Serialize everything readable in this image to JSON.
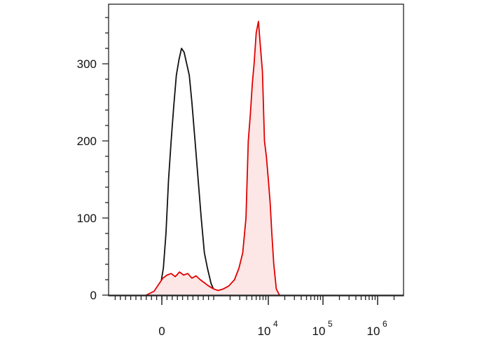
{
  "chart_data": {
    "type": "area",
    "x_scale": "biexponential",
    "y_ticks": [
      {
        "value": 0,
        "label": "0"
      },
      {
        "value": 100,
        "label": "100"
      },
      {
        "value": 200,
        "label": "200"
      },
      {
        "value": 300,
        "label": "300"
      }
    ],
    "x_ticks": [
      {
        "value": 0,
        "base": "0",
        "exp": ""
      },
      {
        "value": 10000,
        "base": "10",
        "exp": "4"
      },
      {
        "value": 100000,
        "base": "10",
        "exp": "5"
      },
      {
        "value": 1000000,
        "base": "10",
        "exp": "6"
      }
    ],
    "ylim": [
      0,
      370
    ],
    "grid": false,
    "series": [
      {
        "color": "#111111",
        "fill": "none",
        "x": [
          -300,
          -150,
          -80,
          -20,
          30,
          80,
          130,
          180,
          230,
          280,
          330,
          380,
          430,
          480,
          530,
          580,
          640,
          700,
          760,
          820,
          880,
          950,
          1020,
          1100,
          1180,
          1260,
          1350,
          1450
        ],
        "y": [
          0,
          3,
          8,
          15,
          35,
          80,
          150,
          200,
          245,
          285,
          305,
          320,
          315,
          300,
          285,
          250,
          200,
          150,
          100,
          55,
          35,
          15,
          6,
          2,
          0,
          0,
          0,
          0
        ]
      },
      {
        "color": "#e00000",
        "fill": "#fde6e6",
        "x": [
          -300,
          -150,
          -50,
          20,
          100,
          180,
          260,
          340,
          420,
          500,
          580,
          660,
          740,
          820,
          900,
          1000,
          1200,
          1500,
          1900,
          2400,
          2900,
          3400,
          3900,
          4300,
          4700,
          5100,
          5500,
          6000,
          6600,
          7200,
          7800,
          8500,
          9200,
          10000,
          10800,
          11600,
          12600,
          14000,
          16000
        ],
        "y": [
          0,
          5,
          15,
          22,
          26,
          28,
          24,
          30,
          26,
          28,
          22,
          25,
          20,
          16,
          12,
          8,
          6,
          8,
          12,
          20,
          35,
          55,
          100,
          200,
          235,
          275,
          300,
          340,
          355,
          320,
          290,
          200,
          180,
          150,
          120,
          80,
          40,
          8,
          0
        ]
      }
    ]
  }
}
